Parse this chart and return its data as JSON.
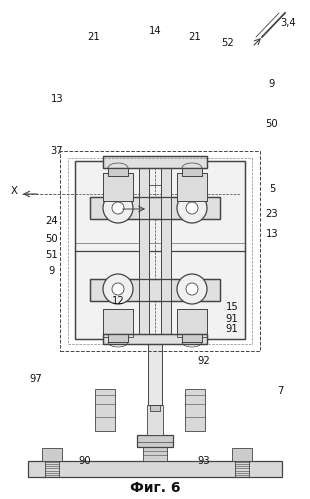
{
  "title": "Фиг. 6",
  "title_fontsize": 10,
  "bg_color": "#ffffff",
  "line_color": "#444444",
  "label_color": "#111111",
  "lw_thin": 0.6,
  "lw_med": 0.9,
  "lw_thick": 1.3
}
